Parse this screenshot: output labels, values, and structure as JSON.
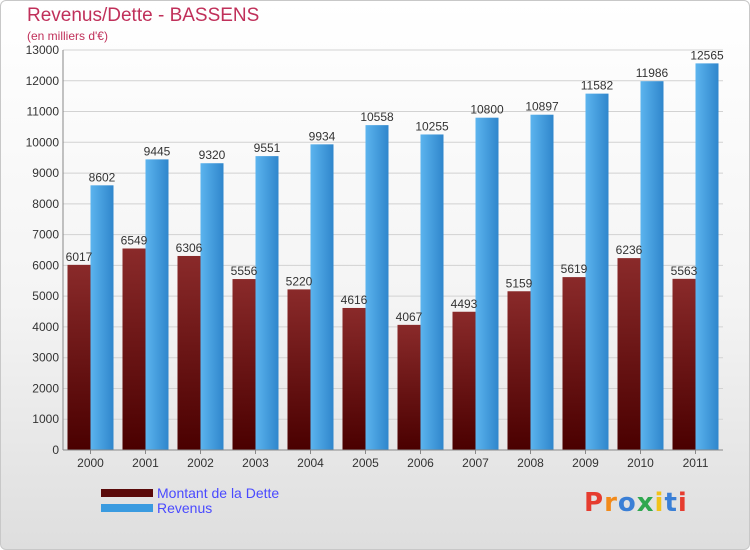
{
  "chart_data": {
    "type": "bar",
    "title": "Revenus/Dette - BASSENS",
    "subtitle": "(en milliers d'€)",
    "categories": [
      "2000",
      "2001",
      "2002",
      "2003",
      "2004",
      "2005",
      "2006",
      "2007",
      "2008",
      "2009",
      "2010",
      "2011"
    ],
    "series": [
      {
        "name": "Montant de la Dette",
        "color": "#7a1a1a",
        "values": [
          6017,
          6549,
          6306,
          5556,
          5220,
          4616,
          4067,
          4493,
          5159,
          5619,
          6236,
          5563
        ]
      },
      {
        "name": "Revenus",
        "color": "#3a9be0",
        "values": [
          8602,
          9445,
          9320,
          9551,
          9934,
          10558,
          10255,
          10800,
          10897,
          11582,
          11986,
          12565
        ]
      }
    ],
    "ylim": [
      0,
      13000
    ],
    "yticks": [
      0,
      1000,
      2000,
      3000,
      4000,
      5000,
      6000,
      7000,
      8000,
      9000,
      10000,
      11000,
      12000,
      13000
    ],
    "xlabel": "",
    "ylabel": "",
    "grid": true,
    "legend_position": "bottom-left"
  },
  "branding": {
    "logo_text": "Proxiti",
    "colors": [
      "#e63c2f",
      "#f28a1a",
      "#3a7fd6",
      "#2fa84f",
      "#f2c21a",
      "#3a7fd6",
      "#e63c2f"
    ]
  }
}
